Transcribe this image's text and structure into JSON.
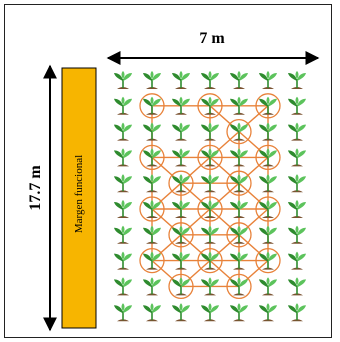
{
  "width_label": "7 m",
  "height_label": "17.7 m",
  "margin_label": "Margen funcional",
  "grid": {
    "columns": 7,
    "rows": 10
  },
  "colors": {
    "margin_fill": "#f7b500",
    "connector": "#e8823a",
    "leaf_dark": "#2e8b2e",
    "leaf_light": "#5cc35c",
    "soil": "#7a5230"
  },
  "icons": {
    "plant": "seedling-icon"
  }
}
